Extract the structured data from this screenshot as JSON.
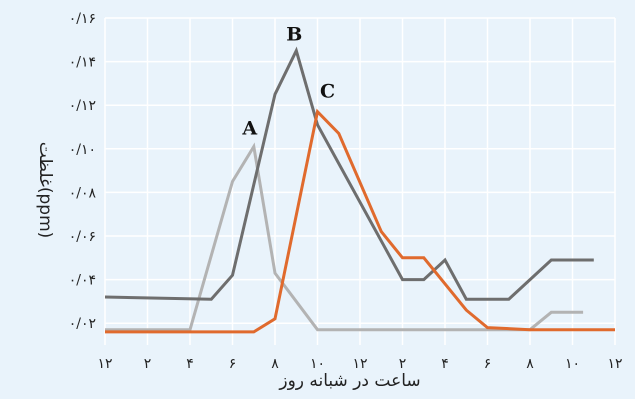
{
  "chart_data": {
    "type": "line",
    "title": "",
    "xlabel": "ساعت در شبانه روز",
    "ylabel": "غلظت(ppm)",
    "x_ticks": [
      "۱۲",
      "۲",
      "۴",
      "۶",
      "۸",
      "۱۰",
      "۱۲",
      "۲",
      "۴",
      "۶",
      "۸",
      "۱۰",
      "۱۲"
    ],
    "y_ticks": [
      "۰/۰۲",
      "۰/۰۴",
      "۰/۰۶",
      "۰/۰۸",
      "۰/۱۰",
      "۰/۱۲",
      "۰/۱۴",
      "۰/۱۶"
    ],
    "xlim": [
      0,
      24
    ],
    "ylim": [
      0.01,
      0.16
    ],
    "grid": true,
    "series": [
      {
        "name": "A",
        "color": "#b3b3b3",
        "points": [
          [
            0,
            0.017
          ],
          [
            4,
            0.017
          ],
          [
            6,
            0.085
          ],
          [
            7,
            0.101
          ],
          [
            8,
            0.043
          ],
          [
            10,
            0.017
          ],
          [
            20,
            0.017
          ],
          [
            21,
            0.025
          ],
          [
            22.5,
            0.025
          ]
        ]
      },
      {
        "name": "B",
        "color": "#6e6e6e",
        "points": [
          [
            0,
            0.032
          ],
          [
            5,
            0.031
          ],
          [
            6,
            0.042
          ],
          [
            8,
            0.125
          ],
          [
            9,
            0.145
          ],
          [
            10,
            0.111
          ],
          [
            14,
            0.04
          ],
          [
            15,
            0.04
          ],
          [
            16,
            0.049
          ],
          [
            17,
            0.031
          ],
          [
            19,
            0.031
          ],
          [
            21,
            0.049
          ],
          [
            23,
            0.049
          ]
        ]
      },
      {
        "name": "C",
        "color": "#e06a2d",
        "points": [
          [
            0,
            0.016
          ],
          [
            7,
            0.016
          ],
          [
            8,
            0.022
          ],
          [
            10,
            0.117
          ],
          [
            11,
            0.107
          ],
          [
            13,
            0.062
          ],
          [
            14,
            0.05
          ],
          [
            15,
            0.05
          ],
          [
            17,
            0.026
          ],
          [
            18,
            0.018
          ],
          [
            20,
            0.017
          ],
          [
            24,
            0.017
          ]
        ]
      }
    ]
  }
}
